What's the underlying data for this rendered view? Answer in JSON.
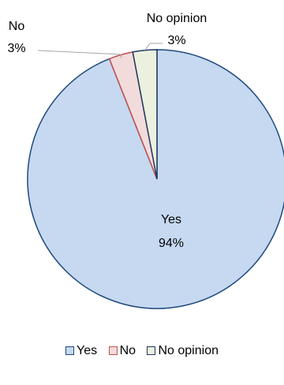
{
  "chart_data": {
    "type": "pie",
    "categories": [
      "Yes",
      "No",
      "No opinion"
    ],
    "values": [
      94,
      3,
      3
    ],
    "labels": [
      "94%",
      "3%",
      "3%"
    ],
    "title": "",
    "legend_position": "bottom",
    "colors": {
      "Yes": "#c6d9f1",
      "No": "#f2dcdb",
      "No opinion": "#ebf1de"
    },
    "edge_colors": {
      "Yes": "#1f497d",
      "No": "#c0504d",
      "No opinion": "#1f3864"
    }
  },
  "legend": {
    "items": [
      "Yes",
      "No",
      "No opinion"
    ]
  }
}
